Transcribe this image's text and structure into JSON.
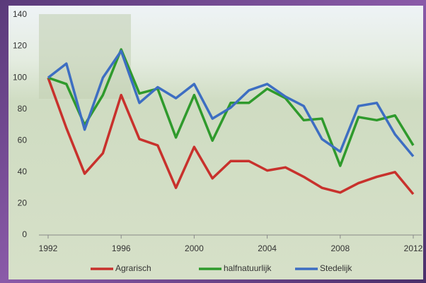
{
  "chart_data": {
    "type": "line",
    "x": [
      1992,
      1993,
      1994,
      1995,
      1996,
      1997,
      1998,
      1999,
      2000,
      2001,
      2002,
      2003,
      2004,
      2005,
      2006,
      2007,
      2008,
      2009,
      2010,
      2011,
      2012
    ],
    "series": [
      {
        "name": "Agrarisch",
        "color": "#c8312c",
        "values": [
          100,
          68,
          39,
          52,
          89,
          61,
          57,
          30,
          56,
          36,
          47,
          47,
          41,
          43,
          37,
          30,
          27,
          33,
          37,
          40,
          26
        ]
      },
      {
        "name": "halfnatuurlijk",
        "color": "#2f9a2c",
        "values": [
          100,
          96,
          70,
          89,
          118,
          90,
          93,
          62,
          89,
          60,
          84,
          84,
          93,
          87,
          73,
          74,
          44,
          75,
          73,
          76,
          57
        ]
      },
      {
        "name": "Stedelijk",
        "color": "#3d6ec2",
        "values": [
          100,
          109,
          67,
          100,
          117,
          84,
          94,
          87,
          96,
          74,
          81,
          92,
          96,
          88,
          82,
          61,
          53,
          82,
          84,
          64,
          50
        ]
      }
    ],
    "xlim": [
      1992,
      2012
    ],
    "xticks": [
      1992,
      1996,
      2000,
      2004,
      2008,
      2012
    ],
    "ylim": [
      0,
      140
    ],
    "yticks": [
      0,
      20,
      40,
      60,
      80,
      100,
      120,
      140
    ]
  }
}
